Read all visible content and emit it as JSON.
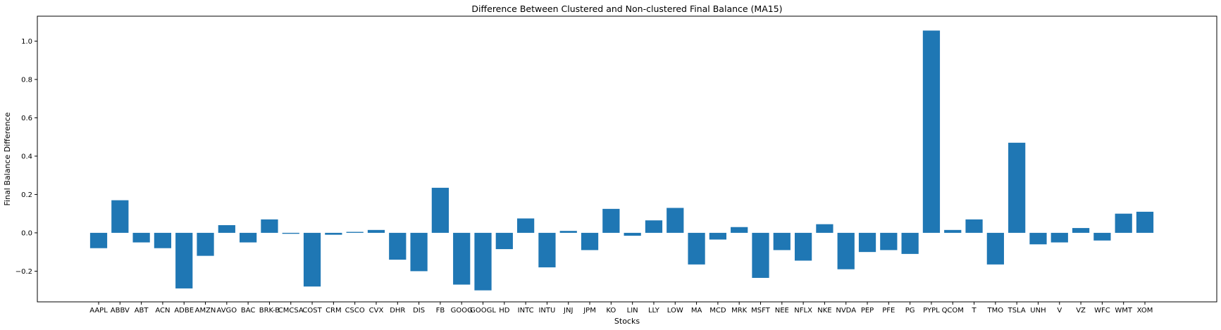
{
  "chart_data": {
    "type": "bar",
    "title": "Difference Between Clustered and Non-clustered Final Balance (MA15)",
    "xlabel": "Stocks",
    "ylabel": "Final Balance Difference",
    "ylim": [
      -0.36,
      1.13
    ],
    "yticks": [
      -0.2,
      0.0,
      0.2,
      0.4,
      0.6,
      0.8,
      1.0
    ],
    "ytick_labels": [
      "−0.2",
      "0.0",
      "0.2",
      "0.4",
      "0.6",
      "0.8",
      "1.0"
    ],
    "grid": false,
    "color": "#1f77b4",
    "categories": [
      "AAPL",
      "ABBV",
      "ABT",
      "ACN",
      "ADBE",
      "AMZN",
      "AVGO",
      "BAC",
      "BRK-B",
      "CMCSA",
      "COST",
      "CRM",
      "CSCO",
      "CVX",
      "DHR",
      "DIS",
      "FB",
      "GOOG",
      "GOOGL",
      "HD",
      "INTC",
      "INTU",
      "JNJ",
      "JPM",
      "KO",
      "LIN",
      "LLY",
      "LOW",
      "MA",
      "MCD",
      "MRK",
      "MSFT",
      "NEE",
      "NFLX",
      "NKE",
      "NVDA",
      "PEP",
      "PFE",
      "PG",
      "PYPL",
      "QCOM",
      "T",
      "TMO",
      "TSLA",
      "UNH",
      "V",
      "VZ",
      "WFC",
      "WMT",
      "XOM"
    ],
    "values": [
      -0.08,
      0.17,
      -0.05,
      -0.08,
      -0.29,
      -0.12,
      0.04,
      -0.05,
      0.07,
      -0.005,
      -0.28,
      -0.01,
      0.005,
      0.015,
      -0.14,
      -0.2,
      0.235,
      -0.27,
      -0.3,
      -0.085,
      0.075,
      -0.18,
      0.01,
      -0.09,
      0.125,
      -0.015,
      0.065,
      0.13,
      -0.165,
      -0.035,
      0.03,
      -0.235,
      -0.09,
      -0.145,
      0.045,
      -0.19,
      -0.1,
      -0.09,
      -0.11,
      1.055,
      0.015,
      0.07,
      -0.165,
      0.47,
      -0.06,
      -0.05,
      0.025,
      -0.04,
      0.1,
      0.11
    ]
  }
}
